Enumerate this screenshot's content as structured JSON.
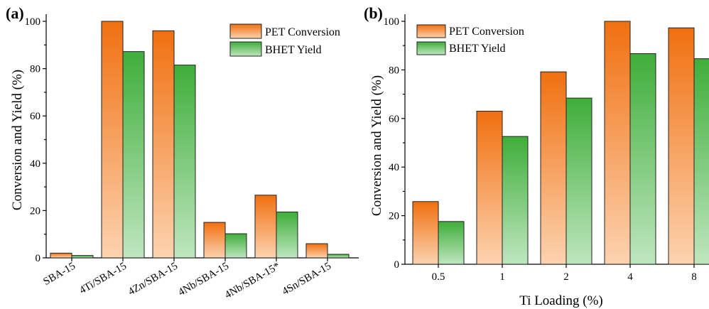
{
  "colors": {
    "pet_top": "#f07010",
    "pet_bottom": "#fcd3b0",
    "bhet_top": "#3fae3a",
    "bhet_bottom": "#bfe6bf"
  },
  "chart_data": [
    {
      "panel_label": "(a)",
      "type": "bar",
      "categories": [
        "SBA-15",
        "4Ti/SBA-15",
        "4Zn/SBA-15",
        "4Nb/SBA-15",
        "4Nb/SBA-15*",
        "4Sn/SBA-15"
      ],
      "series": [
        {
          "name": "PET Conversion",
          "values": [
            2,
            100,
            96,
            15,
            26.5,
            6
          ]
        },
        {
          "name": "BHET Yield",
          "values": [
            1,
            87.2,
            81.5,
            10.2,
            19.4,
            1.5
          ]
        }
      ],
      "xlabel": "",
      "ylabel": "Conversion and Yield (%)",
      "ylim": [
        0,
        100
      ],
      "yticks": [
        "0",
        "20",
        "40",
        "60",
        "80",
        "100"
      ],
      "legend": "top-right",
      "grid": false
    },
    {
      "panel_label": "(b)",
      "type": "bar",
      "categories": [
        "0.5",
        "1",
        "2",
        "4",
        "8"
      ],
      "series": [
        {
          "name": "PET Conversion",
          "values": [
            25.8,
            63,
            79.2,
            100,
            97.3
          ]
        },
        {
          "name": "BHET Yield",
          "values": [
            17.6,
            52.6,
            68.4,
            86.7,
            84.6
          ]
        }
      ],
      "xlabel": "Ti Loading (%)",
      "ylabel": "Conversion and Yield (%)",
      "ylim": [
        0,
        100
      ],
      "yticks": [
        "0",
        "20",
        "40",
        "60",
        "80",
        "100"
      ],
      "legend": "top-left",
      "grid": false
    }
  ]
}
